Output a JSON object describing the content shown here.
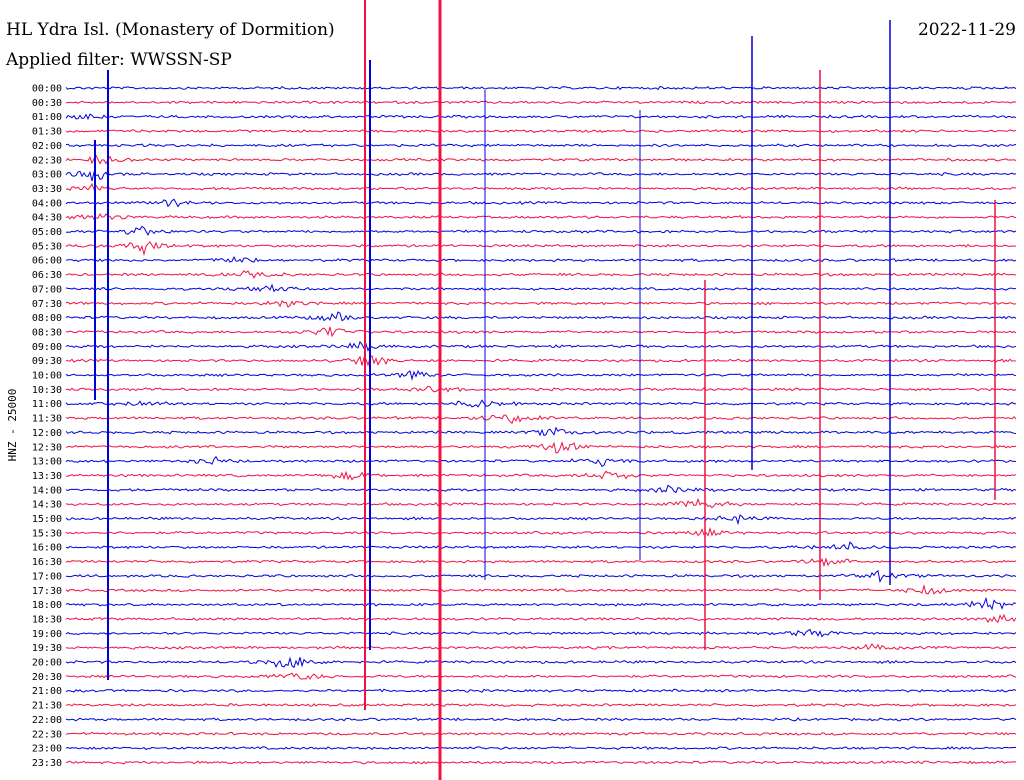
{
  "header": {
    "station": "HL Ydra Isl. (Monastery of Dormition)",
    "filter": "Applied filter: WWSSN-SP",
    "date": "2022-11-29"
  },
  "chart_data": {
    "type": "helicorder",
    "title": "HL Ydra Isl. (Monastery of Dormition)",
    "subtitle": "Applied filter: WWSSN-SP",
    "date": "2022-11-29",
    "ylabel": "HNZ - 25000",
    "row_labels": [
      "00:00",
      "00:30",
      "01:00",
      "01:30",
      "02:00",
      "02:30",
      "03:00",
      "03:30",
      "04:00",
      "04:30",
      "05:00",
      "05:30",
      "06:00",
      "06:30",
      "07:00",
      "07:30",
      "08:00",
      "08:30",
      "09:00",
      "09:30",
      "10:00",
      "10:30",
      "11:00",
      "11:30",
      "12:00",
      "12:30",
      "13:00",
      "13:30",
      "14:00",
      "14:30",
      "15:00",
      "15:30",
      "16:00",
      "16:30",
      "17:00",
      "17:30",
      "18:00",
      "18:30",
      "19:00",
      "19:30",
      "20:00",
      "20:30",
      "21:00",
      "21:30",
      "22:00",
      "22:30",
      "23:00",
      "23:30"
    ],
    "trace_colors": [
      "#0000dd",
      "#ee1144"
    ],
    "grid": false
  }
}
